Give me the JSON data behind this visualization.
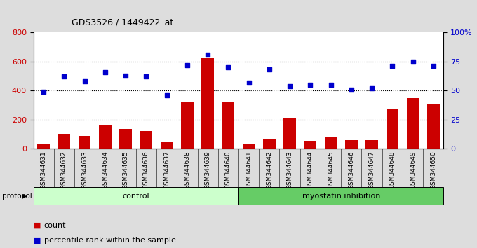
{
  "title": "GDS3526 / 1449422_at",
  "samples": [
    "GSM344631",
    "GSM344632",
    "GSM344633",
    "GSM344634",
    "GSM344635",
    "GSM344636",
    "GSM344637",
    "GSM344638",
    "GSM344639",
    "GSM344640",
    "GSM344641",
    "GSM344642",
    "GSM344643",
    "GSM344644",
    "GSM344645",
    "GSM344646",
    "GSM344647",
    "GSM344648",
    "GSM344649",
    "GSM344650"
  ],
  "counts": [
    35,
    105,
    90,
    160,
    135,
    120,
    50,
    325,
    620,
    320,
    30,
    70,
    210,
    55,
    80,
    60,
    60,
    270,
    350,
    310
  ],
  "percentiles": [
    49,
    62,
    58,
    66,
    63,
    62,
    46,
    72,
    81,
    70,
    57,
    68,
    54,
    55,
    55,
    51,
    52,
    71,
    75,
    71
  ],
  "control_count": 10,
  "myostatin_count": 10,
  "bar_color": "#cc0000",
  "dot_color": "#0000cc",
  "fig_bg_color": "#dddddd",
  "plot_bg_color": "#ffffff",
  "left_yticks": [
    0,
    200,
    400,
    600,
    800
  ],
  "right_yticks": [
    0,
    25,
    50,
    75,
    100
  ],
  "ylim_left": [
    0,
    800
  ],
  "ylim_right": [
    0,
    100
  ],
  "control_color": "#ccffcc",
  "myostatin_color": "#66cc66",
  "tick_label_color_left": "#cc0000",
  "tick_label_color_right": "#0000cc",
  "legend_count_label": "count",
  "legend_pct_label": "percentile rank within the sample",
  "xtick_bg_color": "#cccccc"
}
